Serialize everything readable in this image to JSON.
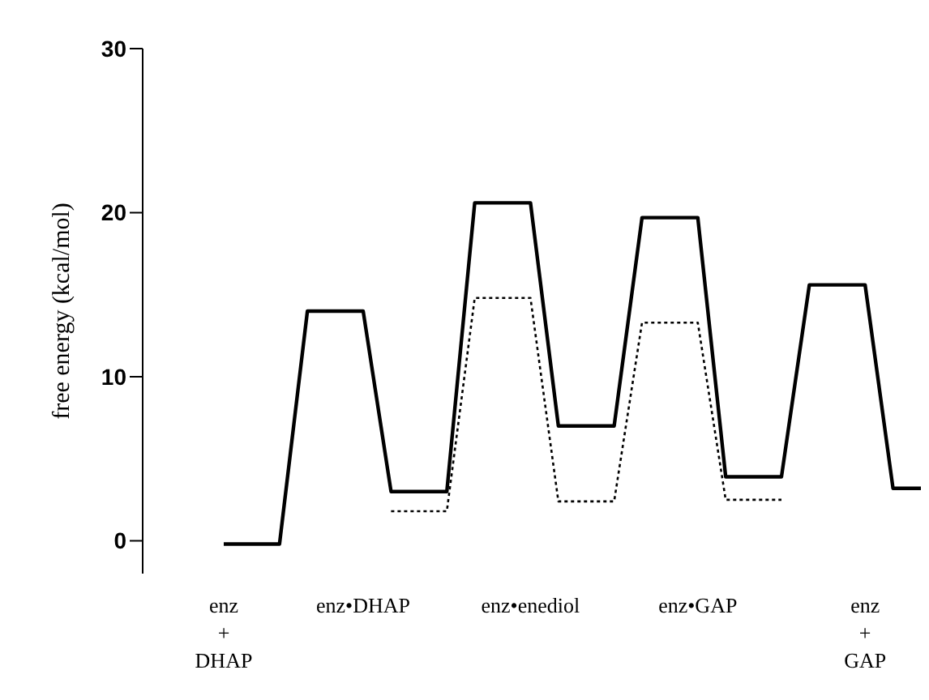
{
  "chart_data": {
    "type": "line",
    "ylabel": "free energy (kcal/mol)",
    "categories": [
      "enz\n+\nDHAP",
      null,
      null,
      null,
      null,
      "enz•DHAP",
      null,
      null,
      null,
      null,
      null,
      "enz•enediol",
      null,
      null,
      null,
      null,
      null,
      "enz•GAP",
      null,
      null,
      null,
      null,
      null,
      "enz\n+\nGAP",
      null,
      null
    ],
    "series": [
      {
        "color": "#000000",
        "line_style": "solid",
        "values": [
          -0.2,
          null,
          -0.2,
          14,
          null,
          14,
          3.0,
          null,
          3.0,
          20.6,
          null,
          20.6,
          7.0,
          null,
          7.0,
          19.7,
          null,
          19.7,
          3.9,
          null,
          3.9,
          15.6,
          null,
          15.6,
          3.2,
          3.2
        ]
      },
      {
        "color": "#000000",
        "line_style": "dotted",
        "values": [
          null,
          null,
          null,
          null,
          null,
          null,
          1.8,
          null,
          1.8,
          14.8,
          null,
          14.8,
          2.4,
          null,
          2.4,
          13.3,
          null,
          13.3,
          2.5,
          null,
          2.5,
          null,
          null,
          null,
          null,
          null
        ]
      }
    ],
    "ylim": [
      -2,
      30
    ],
    "yticks": [
      0,
      10,
      20,
      30
    ],
    "grid": false
  }
}
